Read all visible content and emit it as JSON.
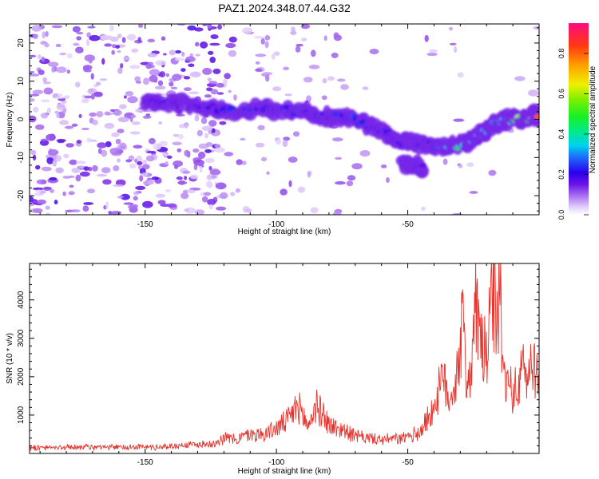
{
  "title": "PAZ1.2024.348.07.44.G32",
  "chart_data": [
    {
      "type": "heatmap",
      "xlabel": "Height of straight line (km)",
      "ylabel": "Frequency (Hz)",
      "xlim": [
        -194,
        0
      ],
      "ylim": [
        -25,
        25
      ],
      "xticks": [
        -150,
        -100,
        -50
      ],
      "yticks": [
        -20,
        -10,
        0,
        10,
        20
      ],
      "colorbar": {
        "label": "Normalized spectral amplitude",
        "range": [
          0.0,
          0.95
        ],
        "ticks": [
          0.0,
          0.2,
          0.4,
          0.6,
          0.8
        ],
        "tick_labels": [
          "0.0",
          "0.2",
          "0.4",
          "0.6",
          "0.8"
        ]
      },
      "ridge": {
        "name": "dominant frequency trace",
        "points": [
          {
            "x": -150,
            "y": 5,
            "amp": 0.15
          },
          {
            "x": -145,
            "y": 4.5,
            "amp": 0.2
          },
          {
            "x": -135,
            "y": 4,
            "amp": 0.15
          },
          {
            "x": -125,
            "y": 3,
            "amp": 0.2
          },
          {
            "x": -115,
            "y": 2,
            "amp": 0.25
          },
          {
            "x": -105,
            "y": 3,
            "amp": 0.22
          },
          {
            "x": -97,
            "y": 2.5,
            "amp": 0.25
          },
          {
            "x": -90,
            "y": 2,
            "amp": 0.25
          },
          {
            "x": -85,
            "y": 1,
            "amp": 0.22
          },
          {
            "x": -78,
            "y": 1,
            "amp": 0.22
          },
          {
            "x": -70,
            "y": 0,
            "amp": 0.25
          },
          {
            "x": -63,
            "y": -2,
            "amp": 0.2
          },
          {
            "x": -57,
            "y": -4,
            "amp": 0.2
          },
          {
            "x": -52,
            "y": -6,
            "amp": 0.2
          },
          {
            "x": -48,
            "y": -6,
            "amp": 0.15
          },
          {
            "x": -42,
            "y": -6.5,
            "amp": 0.18
          },
          {
            "x": -37,
            "y": -7,
            "amp": 0.3
          },
          {
            "x": -33,
            "y": -7,
            "amp": 0.45
          },
          {
            "x": -28,
            "y": -6.5,
            "amp": 0.35
          },
          {
            "x": -24,
            "y": -5,
            "amp": 0.35
          },
          {
            "x": -20,
            "y": -3,
            "amp": 0.35
          },
          {
            "x": -16,
            "y": -1,
            "amp": 0.3
          },
          {
            "x": -12,
            "y": 0,
            "amp": 0.35
          },
          {
            "x": -8,
            "y": 0,
            "amp": 0.6
          },
          {
            "x": -5,
            "y": 0,
            "amp": 0.55
          },
          {
            "x": -2,
            "y": 1,
            "amp": 0.75
          },
          {
            "x": 0,
            "y": 1,
            "amp": 0.9
          }
        ],
        "branch": [
          {
            "x": -52,
            "y": -12,
            "amp": 0.15
          },
          {
            "x": -47,
            "y": -12,
            "amp": 0.2
          },
          {
            "x": -44,
            "y": -12.5,
            "amp": 0.15
          }
        ]
      }
    },
    {
      "type": "line",
      "xlabel": "Height of straight line (km)",
      "ylabel": "SNR (10 * v/v)",
      "xlim": [
        -194,
        0
      ],
      "ylim": [
        0,
        4950
      ],
      "xticks": [
        -150,
        -100,
        -50
      ],
      "yticks": [
        1000,
        2000,
        3000,
        4000
      ],
      "color": "#e8322b",
      "series": [
        {
          "x": [
            -194,
            -185,
            -175,
            -165,
            -155,
            -145,
            -135,
            -125,
            -120,
            -115,
            -110,
            -105,
            -100,
            -95,
            -92,
            -90,
            -88,
            -85,
            -82,
            -80,
            -77,
            -74,
            -70,
            -65,
            -60,
            -55,
            -50,
            -45,
            -40,
            -37,
            -34,
            -32,
            -30,
            -29,
            -28,
            -26,
            -24,
            -22,
            -20,
            -18,
            -17,
            -16,
            -15,
            -14,
            -12,
            -10,
            -8,
            -6,
            -4,
            -2,
            0
          ],
          "y": [
            160,
            150,
            170,
            150,
            180,
            160,
            220,
            250,
            400,
            380,
            500,
            500,
            650,
            900,
            1250,
            1000,
            700,
            1250,
            1000,
            750,
            650,
            600,
            450,
            400,
            350,
            380,
            400,
            600,
            1200,
            1900,
            1500,
            1800,
            2800,
            3400,
            2200,
            2000,
            3900,
            2800,
            2500,
            3800,
            4300,
            3000,
            4900,
            2200,
            1800,
            1600,
            1700,
            2200,
            2100,
            2300,
            2250
          ]
        }
      ]
    }
  ]
}
